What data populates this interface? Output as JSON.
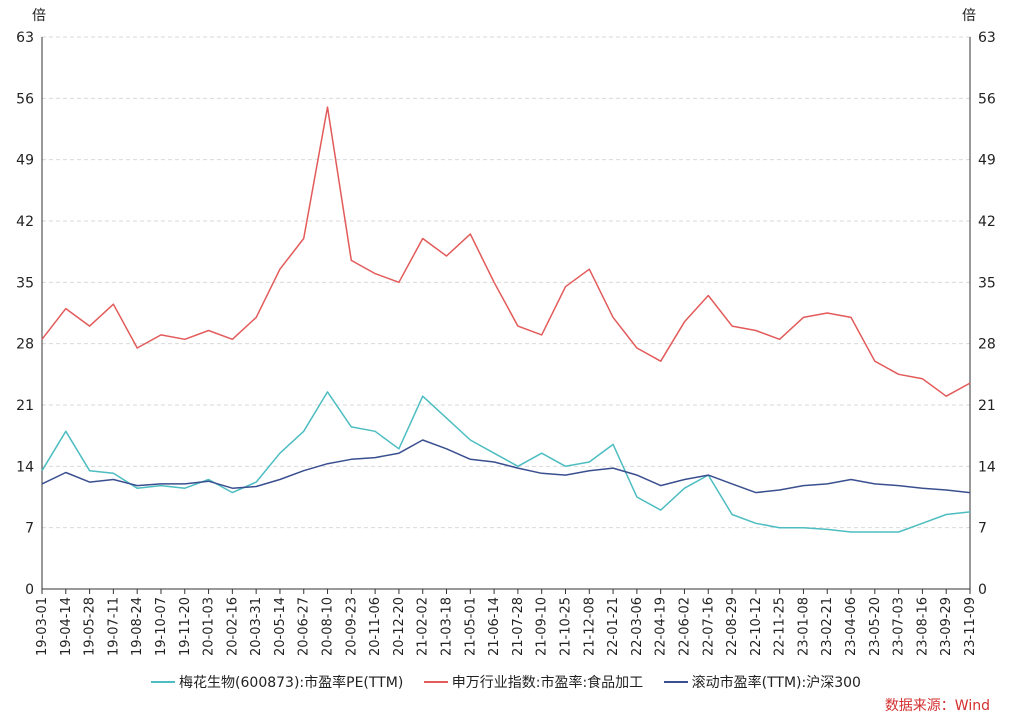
{
  "colors": {
    "s1": "#4dbdc1",
    "s2": "#e35a5a",
    "s3": "#3a4f8f",
    "source": "#d32f2f"
  },
  "source_text": "数据来源：Wind",
  "chart_data": {
    "type": "line",
    "left_unit": "倍",
    "right_unit": "倍",
    "ylim": [
      0,
      63
    ],
    "yticks": [
      0,
      7,
      14,
      21,
      28,
      35,
      42,
      49,
      56,
      63
    ],
    "grid": true,
    "legend_position": "bottom",
    "x_categories": [
      "19-03-01",
      "19-04-14",
      "19-05-28",
      "19-07-11",
      "19-08-24",
      "19-10-07",
      "19-11-20",
      "20-01-03",
      "20-02-16",
      "20-03-31",
      "20-05-14",
      "20-06-27",
      "20-08-10",
      "20-09-23",
      "20-11-06",
      "20-12-20",
      "21-02-02",
      "21-03-18",
      "21-05-01",
      "21-06-14",
      "21-07-28",
      "21-09-10",
      "21-10-25",
      "21-12-08",
      "22-01-21",
      "22-03-06",
      "22-04-19",
      "22-06-02",
      "22-07-16",
      "22-08-29",
      "22-10-12",
      "22-11-25",
      "23-01-08",
      "23-02-21",
      "23-04-06",
      "23-05-20",
      "23-07-03",
      "23-08-16",
      "23-09-29",
      "23-11-09"
    ],
    "series": [
      {
        "name": "梅花生物(600873):市盈率PE(TTM)",
        "values": [
          13.5,
          18.0,
          13.5,
          13.2,
          11.5,
          11.8,
          11.5,
          12.5,
          11.0,
          12.2,
          15.5,
          18.0,
          22.5,
          18.5,
          18.0,
          16.0,
          22.0,
          19.5,
          17.0,
          15.5,
          14.0,
          15.5,
          14.0,
          14.5,
          16.5,
          10.5,
          9.0,
          11.5,
          13.0,
          8.5,
          7.5,
          7.0,
          7.0,
          6.8,
          6.5,
          6.5,
          6.5,
          7.5,
          8.5,
          8.8
        ]
      },
      {
        "name": "申万行业指数:市盈率:食品加工",
        "values": [
          28.5,
          32.0,
          30.0,
          32.5,
          27.5,
          29.0,
          28.5,
          29.5,
          28.5,
          31.0,
          36.5,
          40.0,
          55.0,
          37.5,
          36.0,
          35.0,
          40.0,
          38.0,
          40.5,
          35.0,
          30.0,
          29.0,
          34.5,
          36.5,
          31.0,
          27.5,
          26.0,
          30.5,
          33.5,
          30.0,
          29.5,
          28.5,
          31.0,
          31.5,
          31.0,
          26.0,
          24.5,
          24.0,
          22.0,
          23.5
        ]
      },
      {
        "name": "滚动市盈率(TTM):沪深300",
        "values": [
          12.0,
          13.3,
          12.2,
          12.5,
          11.8,
          12.0,
          12.0,
          12.3,
          11.5,
          11.7,
          12.5,
          13.5,
          14.3,
          14.8,
          15.0,
          15.5,
          17.0,
          16.0,
          14.8,
          14.5,
          13.8,
          13.2,
          13.0,
          13.5,
          13.8,
          13.0,
          11.8,
          12.5,
          13.0,
          12.0,
          11.0,
          11.3,
          11.8,
          12.0,
          12.5,
          12.0,
          11.8,
          11.5,
          11.3,
          11.0
        ]
      }
    ]
  }
}
